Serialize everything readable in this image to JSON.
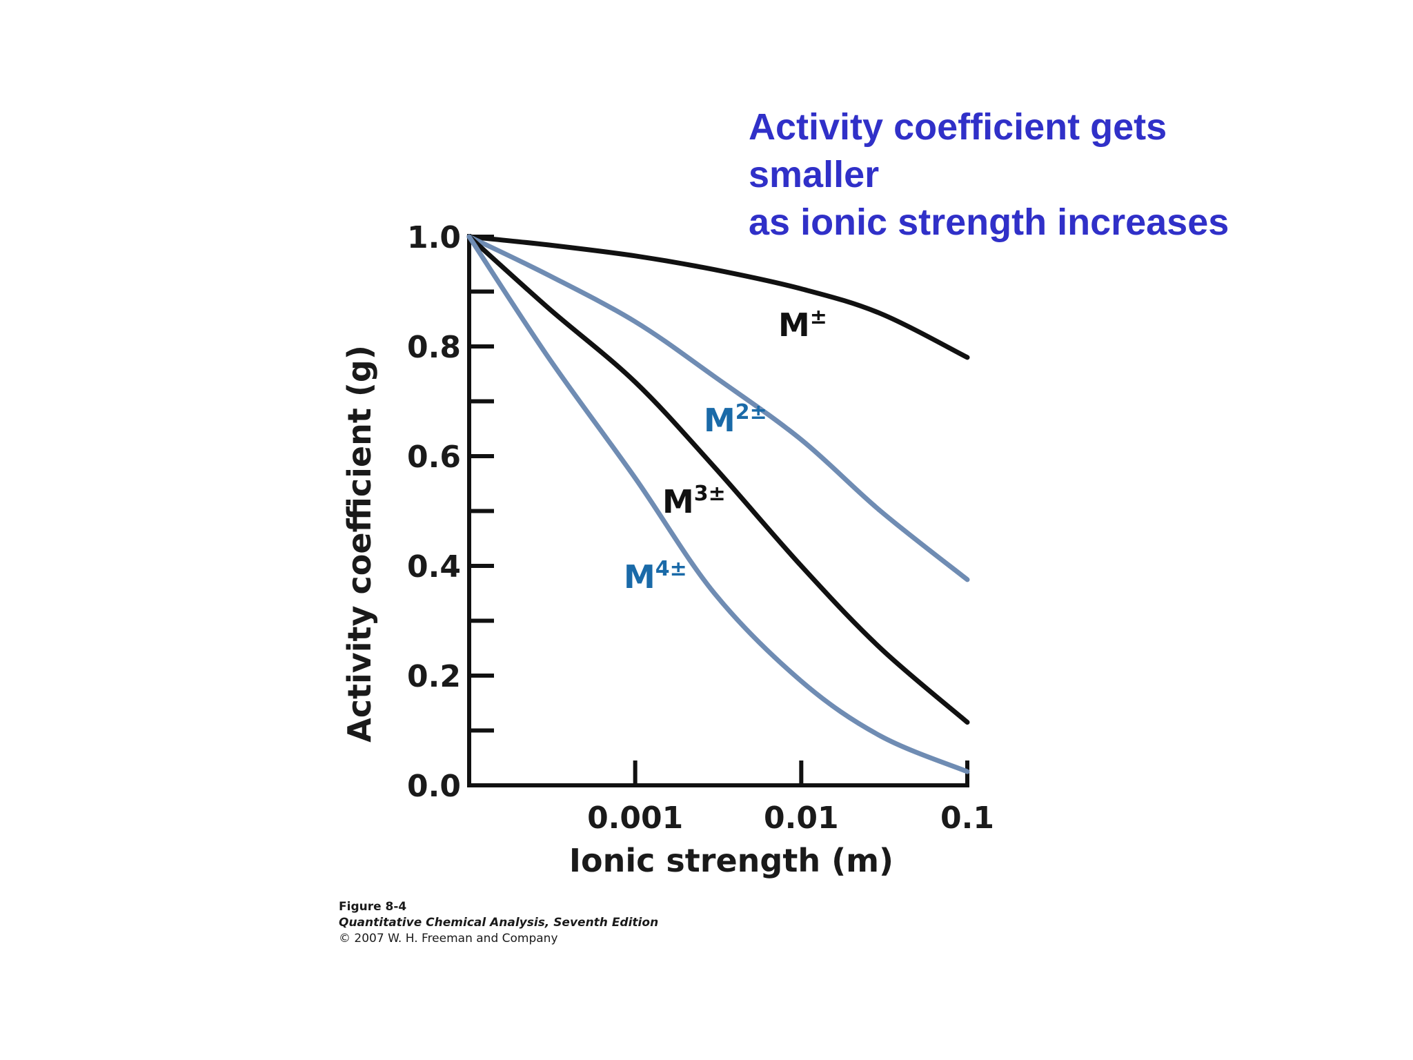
{
  "callout": {
    "lines": [
      "Activity coefficient gets",
      "smaller",
      "as ionic strength increases"
    ],
    "color": "#3030c8"
  },
  "credit": {
    "figure": "Figure 8-4",
    "book": "Quantitative Chemical Analysis, Seventh Edition",
    "copyright": "© 2007 W. H. Freeman and Company"
  },
  "chart_data": {
    "type": "line",
    "xlabel": "Ionic strength (m)",
    "ylabel": "Activity coefficient (g)",
    "x_scale": "log",
    "xlim": [
      0.0001,
      0.1
    ],
    "ylim": [
      0.0,
      1.0
    ],
    "x_ticks": [
      {
        "value": 0.001,
        "label": "0.001"
      },
      {
        "value": 0.01,
        "label": "0.01"
      },
      {
        "value": 0.1,
        "label": "0.1"
      }
    ],
    "y_ticks": [
      {
        "value": 0.0,
        "label": "0.0"
      },
      {
        "value": 0.2,
        "label": "0.2"
      },
      {
        "value": 0.4,
        "label": "0.4"
      },
      {
        "value": 0.6,
        "label": "0.6"
      },
      {
        "value": 0.8,
        "label": "0.8"
      },
      {
        "value": 1.0,
        "label": "1.0"
      }
    ],
    "y_minor_ticks": [
      0.1,
      0.3,
      0.5,
      0.7,
      0.9
    ],
    "grid": false,
    "series": [
      {
        "name": "M±",
        "label_base": "M",
        "label_sup": "±",
        "color": "#111111",
        "x": [
          0.0001,
          0.0003,
          0.001,
          0.003,
          0.01,
          0.03,
          0.1
        ],
        "y": [
          1.0,
          0.985,
          0.965,
          0.94,
          0.905,
          0.86,
          0.78
        ]
      },
      {
        "name": "M2±",
        "label_base": "M",
        "label_sup": "2±",
        "color": "#6f8cb3",
        "x": [
          0.0001,
          0.0003,
          0.001,
          0.003,
          0.01,
          0.03,
          0.1
        ],
        "y": [
          1.0,
          0.93,
          0.845,
          0.745,
          0.63,
          0.5,
          0.375
        ]
      },
      {
        "name": "M3±",
        "label_base": "M",
        "label_sup": "3±",
        "color": "#111111",
        "x": [
          0.0001,
          0.0003,
          0.001,
          0.003,
          0.01,
          0.03,
          0.1
        ],
        "y": [
          1.0,
          0.87,
          0.735,
          0.58,
          0.4,
          0.25,
          0.115
        ]
      },
      {
        "name": "M4±",
        "label_base": "M",
        "label_sup": "4±",
        "color": "#6f8cb3",
        "x": [
          0.0001,
          0.0003,
          0.001,
          0.003,
          0.01,
          0.03,
          0.1
        ],
        "y": [
          1.0,
          0.78,
          0.56,
          0.35,
          0.19,
          0.09,
          0.025
        ]
      }
    ],
    "label_colors": {
      "black_series": "#111111",
      "blue_series_label": "#1a6aa8"
    }
  }
}
